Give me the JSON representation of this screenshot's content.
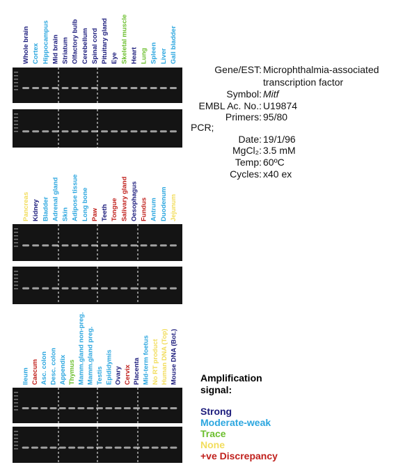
{
  "panels": [
    {
      "lanes": [
        {
          "label": "Whole brain",
          "color": "#1c1c7c"
        },
        {
          "label": "Cortex",
          "color": "#2ba6df"
        },
        {
          "label": "Hippocampus",
          "color": "#2ba6df"
        },
        {
          "label": "Mid brain",
          "color": "#1c1c7c"
        },
        {
          "label": "Striatum",
          "color": "#1c1c7c"
        },
        {
          "label": "Olfactory bulb",
          "color": "#1c1c7c"
        },
        {
          "label": "Cerebellum",
          "color": "#1c1c7c"
        },
        {
          "label": "Spinal cord",
          "color": "#1c1c7c"
        },
        {
          "label": "Pituitary gland",
          "color": "#1c1c7c"
        },
        {
          "label": "Eye",
          "color": "#1c1c7c"
        },
        {
          "label": "Skeletal muscle",
          "color": "#6cbf2e"
        },
        {
          "label": "Heart",
          "color": "#1c1c7c"
        },
        {
          "label": "Lung",
          "color": "#6cbf2e"
        },
        {
          "label": "Spleen",
          "color": "#2ba6df"
        },
        {
          "label": "Liver",
          "color": "#2ba6df"
        },
        {
          "label": "Gall bladder",
          "color": "#2ba6df"
        }
      ]
    },
    {
      "lanes": [
        {
          "label": "Pancreas",
          "color": "#f2dd5c"
        },
        {
          "label": "Kidney",
          "color": "#1c1c7c"
        },
        {
          "label": "Bladder",
          "color": "#2ba6df"
        },
        {
          "label": "Adrenal gland",
          "color": "#2ba6df"
        },
        {
          "label": "Skin",
          "color": "#2ba6df"
        },
        {
          "label": "Adipose tissue",
          "color": "#2ba6df"
        },
        {
          "label": "Long bone",
          "color": "#2ba6df"
        },
        {
          "label": "Paw",
          "color": "#c0201c"
        },
        {
          "label": "Teeth",
          "color": "#1c1c7c"
        },
        {
          "label": "Tongue",
          "color": "#c0201c"
        },
        {
          "label": "Salivary gland",
          "color": "#c0201c"
        },
        {
          "label": "Oesophagus",
          "color": "#1c1c7c"
        },
        {
          "label": "Fundus",
          "color": "#c0201c"
        },
        {
          "label": "Antrum",
          "color": "#2ba6df"
        },
        {
          "label": "Duodenum",
          "color": "#2ba6df"
        },
        {
          "label": "Jejunum",
          "color": "#f2dd5c"
        }
      ]
    },
    {
      "lanes": [
        {
          "label": "Ileum",
          "color": "#2ba6df"
        },
        {
          "label": "Caecum",
          "color": "#c0201c"
        },
        {
          "label": "Asc. colon",
          "color": "#2ba6df"
        },
        {
          "label": "Desc. colon",
          "color": "#2ba6df"
        },
        {
          "label": "Appendix",
          "color": "#2ba6df"
        },
        {
          "label": "Thymus",
          "color": "#6cbf2e"
        },
        {
          "label": "Mamm.gland non-preg.",
          "color": "#2ba6df"
        },
        {
          "label": "Mamm.gland preg.",
          "color": "#2ba6df"
        },
        {
          "label": "Testis",
          "color": "#2ba6df"
        },
        {
          "label": "Epididymis",
          "color": "#2ba6df"
        },
        {
          "label": "Ovary",
          "color": "#1c1c7c"
        },
        {
          "label": "Cervix",
          "color": "#c0201c"
        },
        {
          "label": "Placenta",
          "color": "#1c1c7c"
        },
        {
          "label": "Mid-term foetus",
          "color": "#2ba6df"
        },
        {
          "label": "No RT product",
          "color": "#f2dd5c"
        },
        {
          "label": "Human DNA (Top)",
          "color": "#f2dd5c"
        },
        {
          "label": "Mouse DNA (Bot.)",
          "color": "#1c1c7c"
        }
      ]
    }
  ],
  "info": {
    "rows": [
      {
        "key": "Gene/EST:",
        "value": "Microphthalmia-associated"
      },
      {
        "key": "",
        "value": "transcription factor"
      },
      {
        "key": "Symbol:",
        "value": "Mitf"
      },
      {
        "key": "EMBL Ac. No.:",
        "value": "U19874"
      },
      {
        "key": "Primers:",
        "value": "95/80"
      },
      {
        "key": "PCR;",
        "value": ""
      },
      {
        "key": "Date:",
        "value": "19/1/96"
      },
      {
        "key": "MgCl₂:",
        "value": "3.5 mM"
      },
      {
        "key": "Temp:",
        "value": "60ºC"
      },
      {
        "key": "Cycles:",
        "value": "x40 ex"
      }
    ]
  },
  "legend": {
    "title1": "Amplification",
    "title2": "signal:",
    "items": [
      {
        "label": "Strong",
        "color": "#1c1c7c"
      },
      {
        "label": "Moderate-weak",
        "color": "#2ba6df"
      },
      {
        "label": "Trace",
        "color": "#6cbf2e"
      },
      {
        "label": "None",
        "color": "#f2dd5c"
      },
      {
        "label": "+ve Discrepancy",
        "color": "#c0201c"
      }
    ]
  }
}
